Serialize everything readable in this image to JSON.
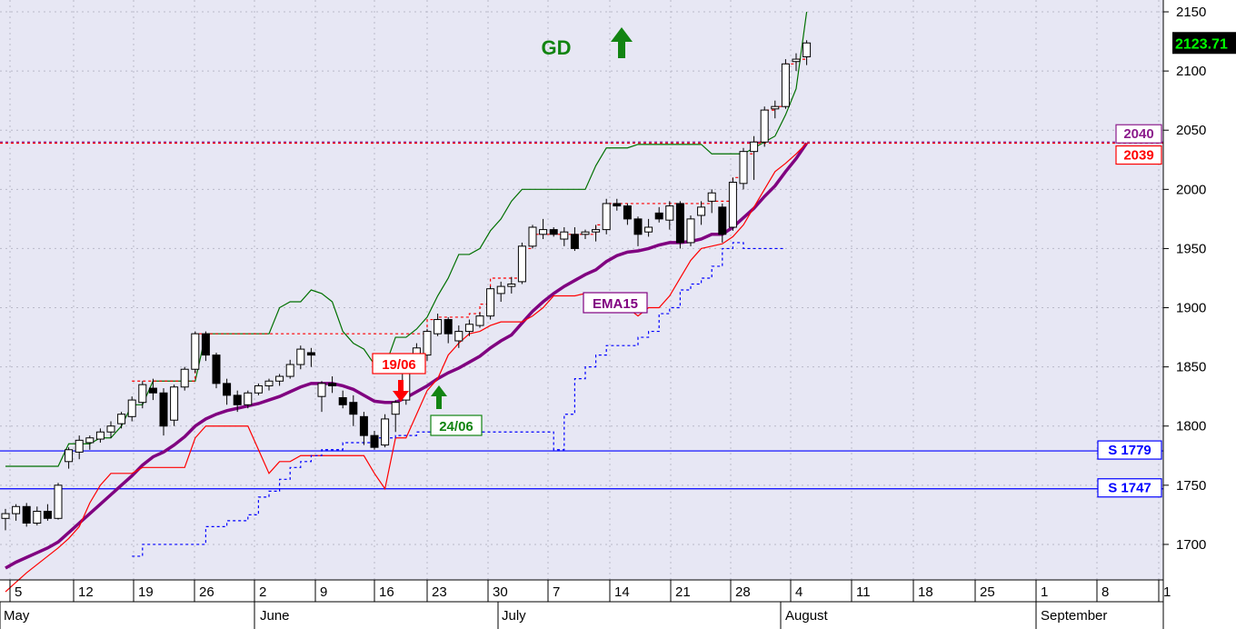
{
  "chart_data": {
    "type": "candlestick",
    "title_signal": "GD",
    "last_price_label": "2123.71",
    "ylim": [
      1670,
      2160
    ],
    "y_ticks": [
      1700,
      1750,
      1800,
      1850,
      1900,
      1950,
      2000,
      2050,
      2100,
      2150
    ],
    "x_tick_labels": [
      "5",
      "12",
      "19",
      "26",
      "2",
      "9",
      "16",
      "23",
      "30",
      "7",
      "14",
      "21",
      "28",
      "4",
      "11",
      "18",
      "25",
      "1",
      "8",
      "1"
    ],
    "month_labels": [
      "May",
      "June",
      "July",
      "August",
      "September"
    ],
    "levels": [
      {
        "label": "2040",
        "value": 2040,
        "color": "#8b1c8b"
      },
      {
        "label": "2039",
        "value": 2039,
        "color": "#ff0000"
      },
      {
        "label": "S 1779",
        "value": 1779,
        "color": "#0000ff"
      },
      {
        "label": "S 1747",
        "value": 1747,
        "color": "#0000ff"
      }
    ],
    "annotations": [
      {
        "label": "19/06",
        "kind": "sell",
        "date_index": 19
      },
      {
        "label": "24/06",
        "kind": "buy",
        "date_index": 22
      },
      {
        "label": "EMA15",
        "kind": "series-label"
      }
    ],
    "candles": [
      [
        1722,
        1730,
        1712,
        1726
      ],
      [
        1726,
        1734,
        1720,
        1732
      ],
      [
        1732,
        1735,
        1715,
        1718
      ],
      [
        1718,
        1732,
        1716,
        1728
      ],
      [
        1728,
        1734,
        1720,
        1722
      ],
      [
        1722,
        1752,
        1721,
        1750
      ],
      [
        1770,
        1782,
        1764,
        1780
      ],
      [
        1778,
        1792,
        1772,
        1788
      ],
      [
        1786,
        1792,
        1780,
        1790
      ],
      [
        1789,
        1798,
        1786,
        1795
      ],
      [
        1795,
        1804,
        1790,
        1800
      ],
      [
        1802,
        1812,
        1798,
        1810
      ],
      [
        1808,
        1825,
        1804,
        1822
      ],
      [
        1820,
        1838,
        1815,
        1835
      ],
      [
        1832,
        1840,
        1822,
        1828
      ],
      [
        1828,
        1832,
        1792,
        1800
      ],
      [
        1805,
        1835,
        1800,
        1833
      ],
      [
        1833,
        1850,
        1830,
        1848
      ],
      [
        1848,
        1880,
        1845,
        1878
      ],
      [
        1878,
        1880,
        1855,
        1860
      ],
      [
        1860,
        1862,
        1832,
        1836
      ],
      [
        1836,
        1840,
        1818,
        1826
      ],
      [
        1826,
        1830,
        1812,
        1818
      ],
      [
        1818,
        1830,
        1815,
        1828
      ],
      [
        1828,
        1836,
        1826,
        1834
      ],
      [
        1834,
        1840,
        1830,
        1838
      ],
      [
        1838,
        1844,
        1834,
        1842
      ],
      [
        1842,
        1856,
        1840,
        1852
      ],
      [
        1852,
        1868,
        1848,
        1865
      ],
      [
        1862,
        1866,
        1850,
        1860
      ],
      [
        1825,
        1838,
        1812,
        1836
      ],
      [
        1836,
        1842,
        1828,
        1834
      ],
      [
        1824,
        1830,
        1815,
        1818
      ],
      [
        1820,
        1826,
        1800,
        1810
      ],
      [
        1808,
        1812,
        1784,
        1792
      ],
      [
        1792,
        1796,
        1780,
        1782
      ],
      [
        1784,
        1810,
        1782,
        1806
      ],
      [
        1810,
        1822,
        1795,
        1820
      ],
      [
        1822,
        1848,
        1818,
        1848
      ],
      [
        1848,
        1870,
        1845,
        1866
      ],
      [
        1860,
        1882,
        1855,
        1880
      ],
      [
        1878,
        1895,
        1876,
        1890
      ],
      [
        1890,
        1892,
        1870,
        1878
      ],
      [
        1872,
        1885,
        1866,
        1880
      ],
      [
        1880,
        1890,
        1876,
        1886
      ],
      [
        1885,
        1896,
        1883,
        1893
      ],
      [
        1893,
        1918,
        1890,
        1916
      ],
      [
        1912,
        1922,
        1905,
        1918
      ],
      [
        1918,
        1926,
        1912,
        1920
      ],
      [
        1922,
        1955,
        1920,
        1952
      ],
      [
        1952,
        1970,
        1950,
        1968
      ],
      [
        1962,
        1975,
        1958,
        1966
      ],
      [
        1966,
        1968,
        1960,
        1962
      ],
      [
        1958,
        1968,
        1952,
        1964
      ],
      [
        1962,
        1968,
        1948,
        1950
      ],
      [
        1962,
        1966,
        1958,
        1964
      ],
      [
        1964,
        1970,
        1956,
        1966
      ],
      [
        1966,
        1992,
        1962,
        1988
      ],
      [
        1988,
        1992,
        1982,
        1986
      ],
      [
        1986,
        1988,
        1970,
        1975
      ],
      [
        1975,
        1977,
        1952,
        1962
      ],
      [
        1964,
        1975,
        1960,
        1968
      ],
      [
        1980,
        1985,
        1972,
        1975
      ],
      [
        1974,
        1990,
        1966,
        1986
      ],
      [
        1988,
        1990,
        1950,
        1955
      ],
      [
        1955,
        1978,
        1952,
        1975
      ],
      [
        1978,
        1990,
        1970,
        1985
      ],
      [
        1990,
        2000,
        1980,
        1997
      ],
      [
        1985,
        1988,
        1955,
        1962
      ],
      [
        1968,
        2010,
        1965,
        2006
      ],
      [
        2005,
        2035,
        2000,
        2032
      ],
      [
        2032,
        2045,
        2008,
        2040
      ],
      [
        2040,
        2070,
        2036,
        2067
      ],
      [
        2068,
        2075,
        2060,
        2070
      ],
      [
        2070,
        2110,
        2068,
        2106
      ],
      [
        2108,
        2115,
        2100,
        2110
      ],
      [
        2112,
        2126,
        2105,
        2123.71
      ]
    ],
    "series": [
      {
        "name": "EMA15",
        "color": "#800080",
        "values": [
          1680,
          1685,
          1689,
          1693,
          1697,
          1702,
          1710,
          1718,
          1726,
          1734,
          1742,
          1750,
          1758,
          1767,
          1774,
          1778,
          1784,
          1791,
          1800,
          1806,
          1810,
          1813,
          1815,
          1817,
          1819,
          1822,
          1825,
          1829,
          1833,
          1836,
          1836,
          1836,
          1834,
          1831,
          1826,
          1821,
          1820,
          1820,
          1824,
          1829,
          1834,
          1840,
          1845,
          1849,
          1854,
          1859,
          1866,
          1872,
          1877,
          1887,
          1897,
          1905,
          1912,
          1918,
          1923,
          1928,
          1932,
          1939,
          1944,
          1947,
          1948,
          1950,
          1953,
          1955,
          1955,
          1956,
          1958,
          1962,
          1962,
          1968,
          1976,
          1984,
          1994,
          2003,
          2015,
          2026,
          2039
        ]
      },
      {
        "name": "Upper band",
        "color": "#007000",
        "values": [
          1766,
          1766,
          1766,
          1766,
          1766,
          1766,
          1785,
          1785,
          1785,
          1790,
          1790,
          1800,
          1818,
          1818,
          1838,
          1838,
          1838,
          1838,
          1838,
          1878,
          1878,
          1878,
          1878,
          1878,
          1878,
          1878,
          1900,
          1905,
          1905,
          1915,
          1912,
          1905,
          1880,
          1870,
          1865,
          1852,
          1850,
          1875,
          1875,
          1882,
          1892,
          1910,
          1925,
          1945,
          1945,
          1950,
          1965,
          1975,
          1990,
          2000,
          2000,
          2000,
          2000,
          2000,
          2000,
          2000,
          2020,
          2035,
          2035,
          2035,
          2038,
          2038,
          2038,
          2038,
          2038,
          2038,
          2038,
          2030,
          2030,
          2030,
          2030,
          2035,
          2040,
          2045,
          2063,
          2085,
          2150
        ]
      },
      {
        "name": "Lower band",
        "color": "#ff0000",
        "values": [
          1660,
          1668,
          1676,
          1683,
          1690,
          1697,
          1705,
          1715,
          1735,
          1750,
          1760,
          1760,
          1760,
          1765,
          1765,
          1765,
          1765,
          1765,
          1790,
          1800,
          1800,
          1800,
          1800,
          1800,
          1780,
          1760,
          1770,
          1770,
          1775,
          1775,
          1775,
          1775,
          1775,
          1775,
          1775,
          1760,
          1747,
          1790,
          1790,
          1810,
          1830,
          1840,
          1860,
          1870,
          1878,
          1880,
          1885,
          1888,
          1888,
          1888,
          1893,
          1900,
          1910,
          1910,
          1910,
          1912,
          1912,
          1912,
          1912,
          1900,
          1893,
          1900,
          1900,
          1910,
          1925,
          1940,
          1950,
          1952,
          1954,
          1960,
          1970,
          1985,
          2000,
          2015,
          2022,
          2030,
          2039
        ]
      },
      {
        "name": "Stop line",
        "color": "#0000ff",
        "values": [
          null,
          null,
          null,
          null,
          null,
          null,
          null,
          null,
          null,
          null,
          null,
          null,
          1690,
          1700,
          1700,
          1700,
          1700,
          1700,
          1700,
          1715,
          1715,
          1720,
          1720,
          1725,
          1740,
          1745,
          1755,
          1765,
          1770,
          1775,
          1780,
          1780,
          1786,
          1786,
          1786,
          1790,
          1790,
          1792,
          1792,
          1795,
          1795,
          1795,
          1795,
          1795,
          1795,
          1795,
          1795,
          1795,
          1795,
          1795,
          1795,
          1795,
          1780,
          1810,
          1840,
          1850,
          1860,
          1868,
          1868,
          1868,
          1875,
          1880,
          1895,
          1900,
          1915,
          1920,
          1925,
          1935,
          1950,
          1955,
          1950,
          1950,
          1950,
          1950,
          1950,
          null,
          null
        ]
      },
      {
        "name": "Resistance",
        "color": "#ff0000",
        "values": [
          null,
          null,
          null,
          null,
          null,
          null,
          null,
          null,
          null,
          null,
          null,
          null,
          1838,
          1838,
          1838,
          1838,
          1838,
          1838,
          1878,
          1878,
          1878,
          1878,
          1878,
          1878,
          1878,
          1878,
          1878,
          1878,
          1878,
          1878,
          1878,
          1878,
          1878,
          1878,
          1878,
          1878,
          1878,
          1878,
          1878,
          1878,
          1890,
          1892,
          1892,
          1892,
          1895,
          1903,
          1925,
          1925,
          1925,
          1950,
          1962,
          1962,
          1962,
          1962,
          1962,
          1962,
          1970,
          1988,
          1988,
          1988,
          1988,
          1988,
          1988,
          1988,
          1988,
          1988,
          1988,
          1990,
          1990,
          2010,
          2030,
          2040,
          2067,
          2070,
          2106,
          2110,
          2123.71
        ]
      }
    ]
  }
}
